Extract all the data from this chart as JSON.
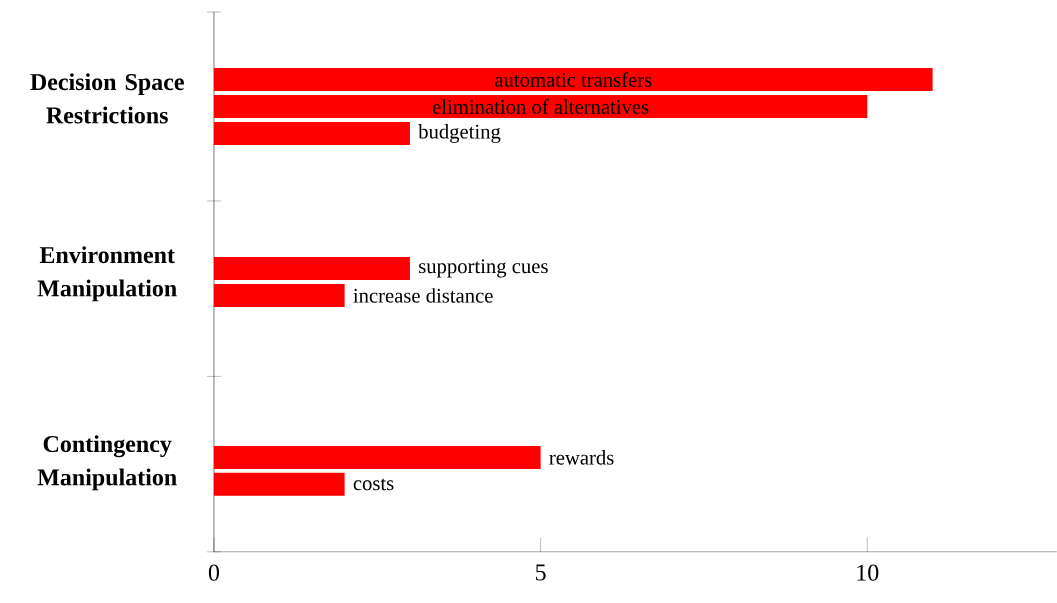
{
  "chart_data": {
    "type": "bar",
    "orientation": "horizontal",
    "color": "#ff0000",
    "categories": [
      null,
      null,
      "automatic transfers",
      "elimination of alternatives",
      "budgeting",
      null,
      null,
      null,
      null,
      "supporting cues",
      "increase distance",
      null,
      null,
      null,
      null,
      null,
      "rewards",
      "costs",
      null,
      null
    ],
    "values": [
      null,
      null,
      11,
      10,
      3,
      null,
      null,
      null,
      null,
      3,
      2,
      null,
      null,
      null,
      null,
      null,
      5,
      2,
      null,
      null
    ],
    "xlim": [
      0,
      12.9
    ],
    "xticks": [
      0,
      5,
      10
    ],
    "grid": false,
    "annotations": [
      "Decision Space Restrictions",
      "Environment Manipulation",
      "Contingency Manipulation"
    ]
  }
}
